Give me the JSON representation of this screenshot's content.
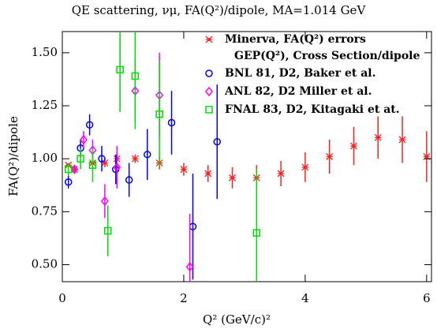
{
  "chart_data": {
    "type": "scatter",
    "title": "QE scattering, νμ, FA(Q²)/dipole, MA=1.014 GeV",
    "x_label": "Q² (GeV/c)²",
    "y_label": "FA(Q²)/dipole",
    "legend_note": "GEP(Q²), Cross Section/dipole",
    "xlim": [
      0,
      6.08
    ],
    "ylim": [
      0.42,
      1.6
    ],
    "xticks": [
      0,
      2,
      4,
      6
    ],
    "yticks": [
      {
        "value": 0.5,
        "label": "0.50"
      },
      {
        "value": 0.75,
        "label": "0.75"
      },
      {
        "value": 1.0,
        "label": "1.00"
      },
      {
        "value": 1.25,
        "label": "1.25"
      },
      {
        "value": 1.5,
        "label": "1.50"
      }
    ],
    "series": [
      {
        "name": "Minerva, FA(Q²) errors",
        "color": "#ff2020",
        "marker": "star",
        "x": [
          0.1,
          0.2,
          0.5,
          0.7,
          0.9,
          1.2,
          1.6,
          2.0,
          2.4,
          2.8,
          3.2,
          3.6,
          4.0,
          4.4,
          4.8,
          5.2,
          5.6,
          6.0
        ],
        "values": [
          0.97,
          0.95,
          0.98,
          0.98,
          1.0,
          1.0,
          0.98,
          0.95,
          0.93,
          0.91,
          0.91,
          0.93,
          0.96,
          1.01,
          1.06,
          1.1,
          1.09,
          1.01
        ],
        "errors": [
          0.01,
          0.01,
          0.02,
          0.02,
          0.02,
          0.02,
          0.03,
          0.03,
          0.04,
          0.05,
          0.06,
          0.06,
          0.07,
          0.08,
          0.09,
          0.1,
          0.11,
          0.12
        ]
      },
      {
        "name": "BNL 81, D2, Baker et al.",
        "color": "#0000ff",
        "marker": "circle",
        "x": [
          0.1,
          0.3,
          0.45,
          0.65,
          0.88,
          1.1,
          1.4,
          1.8,
          2.15,
          2.55
        ],
        "values": [
          0.89,
          1.05,
          1.16,
          1.0,
          0.95,
          0.9,
          1.02,
          1.17,
          0.68,
          1.08
        ],
        "errors": [
          0.03,
          0.04,
          0.05,
          0.06,
          0.07,
          0.08,
          0.12,
          0.15,
          0.25,
          0.27
        ]
      },
      {
        "name": "ANL 82, D2 Miller et al.",
        "color": "#ff00ff",
        "marker": "diamond",
        "x": [
          0.2,
          0.35,
          0.5,
          0.7,
          0.9,
          1.2,
          1.6,
          2.1
        ],
        "values": [
          0.95,
          1.09,
          1.04,
          0.8,
          0.96,
          1.32,
          1.3,
          0.49
        ],
        "errors": [
          0.02,
          0.04,
          0.05,
          0.08,
          0.1,
          0.15,
          0.2,
          0.25
        ]
      },
      {
        "name": "FNAL 83, D2, Kitagaki et at.",
        "color": "#00dd00",
        "marker": "square",
        "x": [
          0.1,
          0.3,
          0.5,
          0.75,
          0.95,
          1.2,
          1.6,
          3.2
        ],
        "values": [
          0.95,
          1.0,
          0.97,
          0.66,
          1.42,
          1.39,
          1.21,
          0.65
        ],
        "errors": [
          0.03,
          0.05,
          0.08,
          0.12,
          0.2,
          0.25,
          0.25,
          0.3
        ]
      }
    ]
  }
}
